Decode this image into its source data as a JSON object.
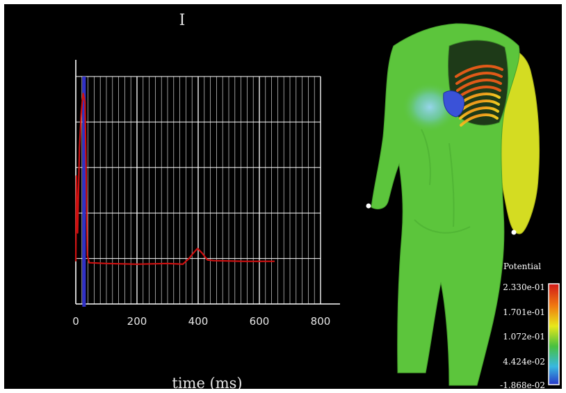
{
  "chart_data": {
    "type": "line",
    "title": "I",
    "xlabel": "time (ms)",
    "ylabel": "",
    "xlim": [
      0,
      800
    ],
    "ylim": [
      -3,
      13
    ],
    "grid": true,
    "x_ticks": [
      "0",
      "200",
      "400",
      "600",
      "800"
    ],
    "cursor_x": 27,
    "line_color": "#d01010",
    "cursor_color": "#3030c8",
    "series": [
      {
        "values": [
          {
            "x": 0,
            "y": 0
          },
          {
            "x": 2,
            "y": 6
          },
          {
            "x": 6,
            "y": 2
          },
          {
            "x": 12,
            "y": 8
          },
          {
            "x": 18,
            "y": 10.5
          },
          {
            "x": 24,
            "y": 11.8
          },
          {
            "x": 30,
            "y": 11.2
          },
          {
            "x": 34,
            "y": 6
          },
          {
            "x": 38,
            "y": 0.4
          },
          {
            "x": 44,
            "y": -0.1
          },
          {
            "x": 100,
            "y": -0.15
          },
          {
            "x": 200,
            "y": -0.2
          },
          {
            "x": 300,
            "y": -0.15
          },
          {
            "x": 350,
            "y": -0.2
          },
          {
            "x": 370,
            "y": 0.2
          },
          {
            "x": 385,
            "y": 0.6
          },
          {
            "x": 398,
            "y": 0.9
          },
          {
            "x": 412,
            "y": 0.6
          },
          {
            "x": 430,
            "y": 0.1
          },
          {
            "x": 450,
            "y": 0.05
          },
          {
            "x": 550,
            "y": 0
          },
          {
            "x": 650,
            "y": 0
          }
        ]
      }
    ]
  },
  "colorbar": {
    "title": "Potential",
    "labels": [
      "2.330e-01",
      "1.701e-01",
      "1.072e-01",
      "4.424e-02",
      "-1.868e-02"
    ],
    "colors": [
      "#d01818",
      "#f07a10",
      "#e8e81a",
      "#48c040",
      "#38b8e0",
      "#2838c8"
    ]
  },
  "torso_colors": {
    "body": "#5cc53c",
    "left_arm": "#d4dc22",
    "heart": "#3a52d8",
    "hotspot": "#8ad0f0"
  }
}
